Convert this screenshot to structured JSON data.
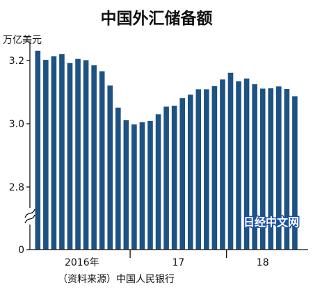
{
  "chart_data": {
    "type": "bar",
    "title": "中国外汇储备额",
    "ylabel": "万亿美元",
    "source": "（资料来源）中国人民银行",
    "y_ticks": [
      "3.2",
      "3.0",
      "2.8",
      "0"
    ],
    "ylim": [
      2.71,
      3.25
    ],
    "axis_break": true,
    "grid": false,
    "color": "#1d5283",
    "x_groups": [
      {
        "label": "2016年",
        "start": 0,
        "end": 11
      },
      {
        "label": "17",
        "start": 12,
        "end": 23
      },
      {
        "label": "18",
        "start": 24,
        "end": 32
      }
    ],
    "categories": [
      "2016-01",
      "2016-02",
      "2016-03",
      "2016-04",
      "2016-05",
      "2016-06",
      "2016-07",
      "2016-08",
      "2016-09",
      "2016-10",
      "2016-11",
      "2016-12",
      "2017-01",
      "2017-02",
      "2017-03",
      "2017-04",
      "2017-05",
      "2017-06",
      "2017-07",
      "2017-08",
      "2017-09",
      "2017-10",
      "2017-11",
      "2017-12",
      "2018-01",
      "2018-02",
      "2018-03",
      "2018-04",
      "2018-05",
      "2018-06",
      "2018-07",
      "2018-08",
      "2018-09"
    ],
    "values": [
      3.231,
      3.202,
      3.213,
      3.22,
      3.192,
      3.205,
      3.201,
      3.185,
      3.166,
      3.121,
      3.051,
      3.011,
      2.998,
      3.005,
      3.009,
      3.03,
      3.054,
      3.057,
      3.081,
      3.092,
      3.109,
      3.109,
      3.119,
      3.14,
      3.161,
      3.134,
      3.143,
      3.125,
      3.111,
      3.112,
      3.118,
      3.11,
      3.087
    ]
  },
  "watermark": {
    "text": "日经中文网"
  }
}
